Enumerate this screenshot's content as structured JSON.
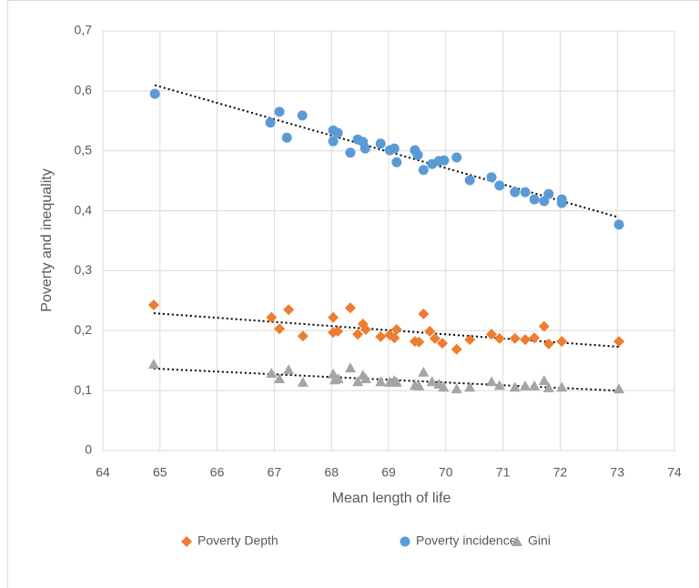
{
  "chart_data": {
    "type": "scatter",
    "x_label": "Mean length of life",
    "y_label": "Poverty and inequality",
    "xlim": [
      64,
      74
    ],
    "xticks": [
      64,
      65,
      66,
      67,
      68,
      69,
      70,
      71,
      72,
      73,
      74
    ],
    "ylim": [
      0,
      0.7
    ],
    "yticks": [
      0,
      {
        "value": 0.1,
        "label": "0,1"
      },
      {
        "value": 0.2,
        "label": "0,2"
      },
      {
        "value": 0.3,
        "label": "0,3"
      },
      {
        "value": 0.4,
        "label": "0,4"
      },
      {
        "value": 0.5,
        "label": "0,5"
      },
      {
        "value": 0.6,
        "label": "0,6"
      },
      {
        "value": 0.7,
        "label": "0,7"
      }
    ],
    "grid": true,
    "trendline": true,
    "legend": "bottom",
    "series": [
      {
        "name": "Poverty Depth",
        "color": "#ed7d31",
        "marker": "diamond",
        "x": [
          64.89,
          66.95,
          67.09,
          67.25,
          67.5,
          68.03,
          68.03,
          68.11,
          68.33,
          68.46,
          68.55,
          68.6,
          68.86,
          69.02,
          69.1,
          69.14,
          69.46,
          69.53,
          69.61,
          69.72,
          69.81,
          69.94,
          70.19,
          70.42,
          70.8,
          70.94,
          71.21,
          71.39,
          71.55,
          71.72,
          71.8,
          72.03,
          73.03
        ],
        "values": [
          0.243,
          0.222,
          0.203,
          0.235,
          0.191,
          0.222,
          0.197,
          0.199,
          0.238,
          0.194,
          0.211,
          0.202,
          0.19,
          0.193,
          0.188,
          0.202,
          0.182,
          0.181,
          0.228,
          0.199,
          0.187,
          0.179,
          0.169,
          0.185,
          0.194,
          0.187,
          0.187,
          0.185,
          0.188,
          0.207,
          0.178,
          0.182,
          0.182
        ]
      },
      {
        "name": "Poverty incidence",
        "color": "#5b9bd5",
        "marker": "circle",
        "x": [
          64.91,
          66.93,
          67.09,
          67.22,
          67.49,
          68.03,
          68.11,
          68.03,
          68.33,
          68.46,
          68.55,
          68.59,
          68.86,
          69.02,
          69.1,
          69.14,
          69.46,
          69.51,
          69.61,
          69.76,
          69.88,
          69.97,
          70.19,
          70.42,
          70.8,
          70.94,
          71.21,
          71.39,
          71.55,
          71.72,
          71.8,
          72.03,
          72.03,
          73.03
        ],
        "values": [
          0.595,
          0.547,
          0.565,
          0.522,
          0.559,
          0.534,
          0.53,
          0.516,
          0.497,
          0.519,
          0.515,
          0.504,
          0.512,
          0.501,
          0.504,
          0.481,
          0.501,
          0.493,
          0.468,
          0.478,
          0.483,
          0.484,
          0.489,
          0.451,
          0.456,
          0.442,
          0.431,
          0.431,
          0.419,
          0.416,
          0.428,
          0.419,
          0.413,
          0.377
        ]
      },
      {
        "name": "Gini",
        "color": "#a5a5a5",
        "marker": "triangle",
        "x": [
          64.89,
          66.95,
          67.09,
          67.25,
          67.5,
          68.03,
          68.06,
          68.12,
          68.33,
          68.46,
          68.55,
          68.6,
          68.86,
          69.02,
          69.1,
          69.14,
          69.46,
          69.53,
          69.61,
          69.76,
          69.88,
          69.96,
          70.19,
          70.42,
          70.8,
          70.94,
          71.21,
          71.39,
          71.55,
          71.72,
          71.8,
          72.03,
          73.03
        ],
        "values": [
          0.144,
          0.129,
          0.12,
          0.135,
          0.114,
          0.128,
          0.118,
          0.12,
          0.138,
          0.115,
          0.126,
          0.12,
          0.115,
          0.114,
          0.117,
          0.114,
          0.109,
          0.108,
          0.131,
          0.115,
          0.111,
          0.106,
          0.103,
          0.106,
          0.115,
          0.109,
          0.106,
          0.108,
          0.108,
          0.117,
          0.105,
          0.106,
          0.103
        ]
      }
    ]
  }
}
